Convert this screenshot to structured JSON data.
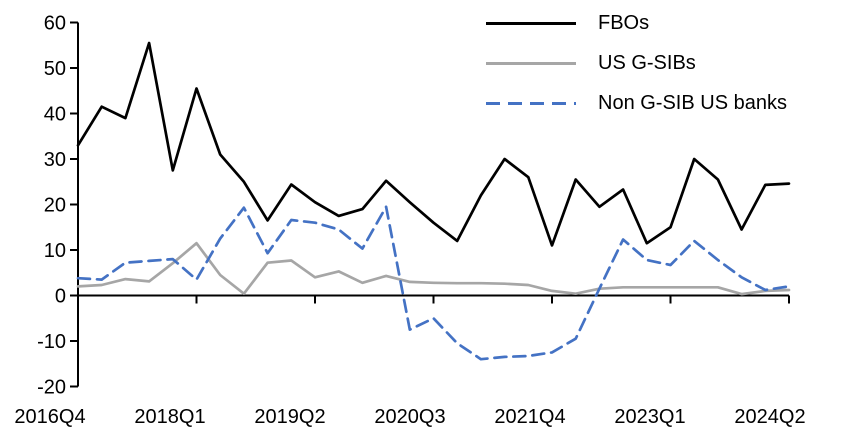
{
  "chart_data": {
    "type": "line",
    "title": "",
    "xlabel": "",
    "ylabel": "",
    "ylim": [
      -20,
      60
    ],
    "grid": false,
    "legend_position": "top-right",
    "y_ticks": [
      60,
      50,
      40,
      30,
      20,
      10,
      0,
      -10,
      -20
    ],
    "x_tick_labels": [
      "2016Q4",
      "2018Q1",
      "2019Q2",
      "2020Q3",
      "2021Q4",
      "2023Q1",
      "2024Q2"
    ],
    "x_labels": [
      "2016Q4",
      "2017Q1",
      "2017Q2",
      "2017Q3",
      "2017Q4",
      "2018Q1",
      "2018Q2",
      "2018Q3",
      "2018Q4",
      "2019Q1",
      "2019Q2",
      "2019Q3",
      "2019Q4",
      "2020Q1",
      "2020Q2",
      "2020Q3",
      "2020Q4",
      "2021Q1",
      "2021Q2",
      "2021Q3",
      "2021Q4",
      "2022Q1",
      "2022Q2",
      "2022Q3",
      "2022Q4",
      "2023Q1",
      "2023Q2",
      "2023Q3",
      "2023Q4",
      "2024Q1",
      "2024Q2"
    ],
    "series": [
      {
        "name": "FBOs",
        "color": "#000000",
        "style": "solid",
        "values": [
          33,
          41.5,
          39,
          55.5,
          27.5,
          45.5,
          31,
          25,
          16.5,
          24.4,
          20.5,
          17.5,
          19,
          25.2,
          20.5,
          16,
          12,
          22,
          30,
          26,
          11,
          25.5,
          19.5,
          23.3,
          11.5,
          15,
          30,
          25.5,
          14.5,
          24.3,
          24.6
        ]
      },
      {
        "name": "US G-SIBs",
        "color": "#a6a6a6",
        "style": "solid",
        "values": [
          2,
          2.3,
          3.6,
          3.1,
          7.1,
          11.5,
          4.5,
          0.4,
          7.2,
          7.7,
          4,
          5.3,
          2.8,
          4.3,
          3,
          2.8,
          2.7,
          2.7,
          2.6,
          2.3,
          1,
          0.4,
          1.5,
          1.8,
          1.8,
          1.8,
          1.8,
          1.8,
          0.3,
          1,
          1.2
        ]
      },
      {
        "name": "Non G-SIB US banks",
        "color": "#4472c4",
        "style": "dashed",
        "values": [
          3.8,
          3.5,
          7.2,
          7.6,
          8,
          3.5,
          12.5,
          19.3,
          9.3,
          16.6,
          16,
          14.5,
          10.3,
          19.5,
          -7.5,
          -5,
          -10.5,
          -14,
          -13.5,
          -13.3,
          -12.5,
          -9.5,
          1.5,
          12.3,
          7.8,
          6.7,
          12,
          7.8,
          4,
          1.2,
          2
        ]
      }
    ]
  }
}
